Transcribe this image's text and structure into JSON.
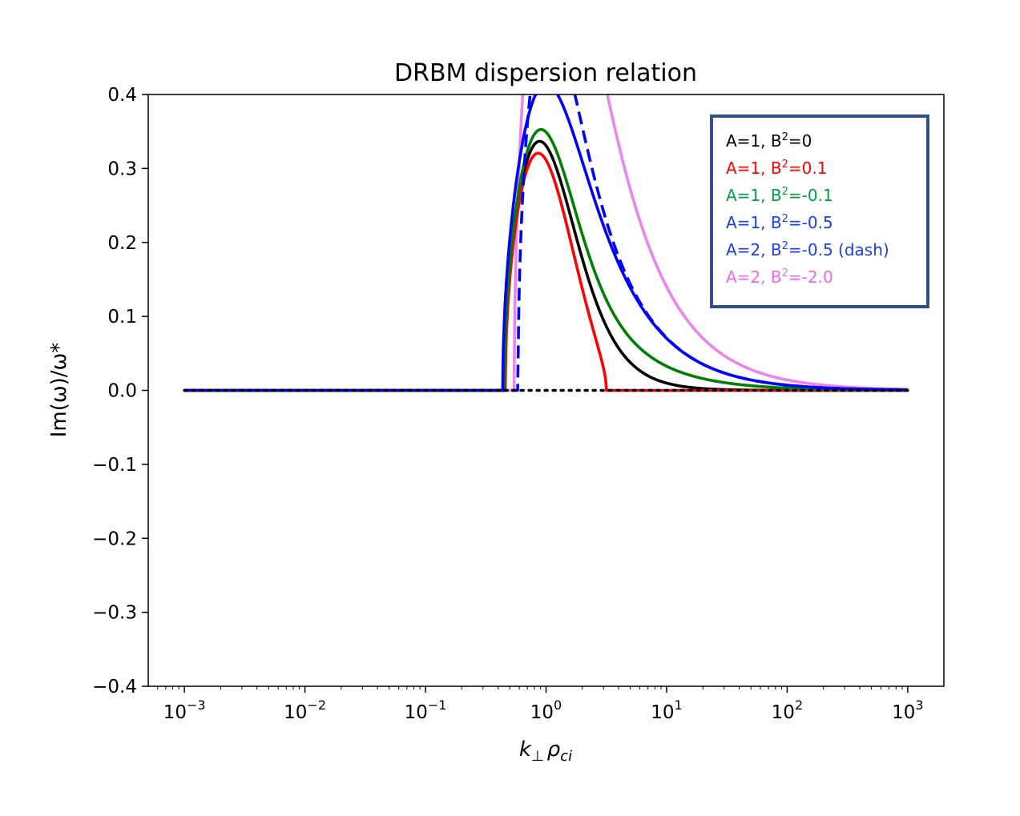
{
  "chart_data": {
    "type": "line",
    "title": "DRBM dispersion relation",
    "xlabel_main": "k",
    "xlabel_sub1": "⊥",
    "xlabel_mid": "ρ",
    "xlabel_sub2": "ci",
    "ylabel": "Im(ω)/ω*",
    "xscale": "log",
    "xlim_exp": [
      -3.3,
      3.3
    ],
    "ylim": [
      -0.4,
      0.4
    ],
    "x_ticks": [
      {
        "base": "10",
        "exp": "−3",
        "value": -3
      },
      {
        "base": "10",
        "exp": "−2",
        "value": -2
      },
      {
        "base": "10",
        "exp": "−1",
        "value": -1
      },
      {
        "base": "10",
        "exp": "0",
        "value": 0
      },
      {
        "base": "10",
        "exp": "1",
        "value": 1
      },
      {
        "base": "10",
        "exp": "2",
        "value": 2
      },
      {
        "base": "10",
        "exp": "3",
        "value": 3
      }
    ],
    "y_ticks": [
      {
        "label": "0.4",
        "value": 0.4
      },
      {
        "label": "0.3",
        "value": 0.3
      },
      {
        "label": "0.2",
        "value": 0.2
      },
      {
        "label": "0.1",
        "value": 0.1
      },
      {
        "label": "0.0",
        "value": 0.0
      },
      {
        "label": "−0.1",
        "value": -0.1
      },
      {
        "label": "−0.2",
        "value": -0.2
      },
      {
        "label": "−0.3",
        "value": -0.3
      },
      {
        "label": "−0.4",
        "value": -0.4
      }
    ],
    "zero_line": {
      "y": 0,
      "style": "dotted",
      "color": "#000000"
    },
    "series": [
      {
        "name": "A=1, B²=0",
        "A": 1,
        "B2": 0,
        "color": "#000000",
        "dash": false
      },
      {
        "name": "A=1, B²=0.1",
        "A": 1,
        "B2": 0.1,
        "color": "#ff0000",
        "dash": false
      },
      {
        "name": "A=1, B²=-0.1",
        "A": 1,
        "B2": -0.1,
        "color": "#008000",
        "dash": false
      },
      {
        "name": "A=1, B²=-0.5",
        "A": 1,
        "B2": -0.5,
        "color": "#0000ff",
        "dash": false
      },
      {
        "name": "A=2, B²=-0.5",
        "A": 2,
        "B2": -0.5,
        "color": "#0000ff",
        "dash": true
      },
      {
        "name": "A=2, B²=-2.0",
        "A": 2,
        "B2": -2.0,
        "color": "#ee82ee",
        "dash": false
      }
    ],
    "legend": {
      "position": "top-right",
      "border_color": "#2f4f8f",
      "entries": [
        {
          "a": "A=1, B",
          "sup": "2",
          "b": "=0",
          "color": "#000000"
        },
        {
          "a": "A=1, B",
          "sup": "2",
          "b": "=0.1",
          "color": "#ff0000"
        },
        {
          "a": "A=1, B",
          "sup": "2",
          "b": "=-0.1",
          "color": "#00a040"
        },
        {
          "a": "A=1, B",
          "sup": "2",
          "b": "=-0.5",
          "color": "#1a3cff"
        },
        {
          "a": "A=2, B",
          "sup": "2",
          "b": "=-0.5 (dash)",
          "color": "#1a3cff"
        },
        {
          "a": "A=2, B",
          "sup": "2",
          "b": "=-2.0",
          "color": "#ee66ee"
        }
      ]
    }
  }
}
